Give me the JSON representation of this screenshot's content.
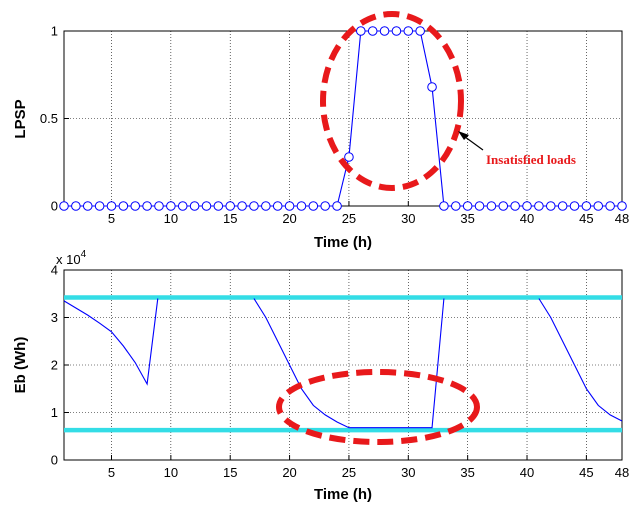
{
  "chart_data": [
    {
      "type": "line",
      "xlabel": "Time (h)",
      "ylabel": "LPSP",
      "xlim": [
        1,
        48
      ],
      "ylim": [
        0,
        1
      ],
      "xticks": [
        5,
        10,
        15,
        20,
        25,
        30,
        35,
        40,
        45,
        48
      ],
      "yticks": [
        0,
        0.5,
        1
      ],
      "ytick_labels": [
        "0",
        "0.5",
        "1"
      ],
      "grid": true,
      "series": [
        {
          "color": "#0000ff",
          "marker": "circle",
          "x": [
            1,
            2,
            3,
            4,
            5,
            6,
            7,
            8,
            9,
            10,
            11,
            12,
            13,
            14,
            15,
            16,
            17,
            18,
            19,
            20,
            21,
            22,
            23,
            24,
            25,
            26,
            27,
            28,
            29,
            30,
            31,
            32,
            33,
            34,
            35,
            36,
            37,
            38,
            39,
            40,
            41,
            42,
            43,
            44,
            45,
            46,
            47,
            48
          ],
          "y": [
            0,
            0,
            0,
            0,
            0,
            0,
            0,
            0,
            0,
            0,
            0,
            0,
            0,
            0,
            0,
            0,
            0,
            0,
            0,
            0,
            0,
            0,
            0,
            0,
            0.28,
            1,
            1,
            1,
            1,
            1,
            1,
            0.68,
            0,
            0,
            0,
            0,
            0,
            0,
            0,
            0,
            0,
            0,
            0,
            0,
            0,
            0,
            0,
            0
          ]
        }
      ],
      "annotations": [
        {
          "text": "Insatisfied loads",
          "color": "#e8191b"
        }
      ]
    },
    {
      "type": "line",
      "xlabel": "Time (h)",
      "ylabel": "Eb (Wh)",
      "xlim": [
        1,
        48
      ],
      "ylim": [
        0,
        4
      ],
      "y_multiplier": "x 10",
      "y_multiplier_exp": "4",
      "xticks": [
        5,
        10,
        15,
        20,
        25,
        30,
        35,
        40,
        45,
        48
      ],
      "yticks": [
        0,
        1,
        2,
        3,
        4
      ],
      "grid": true,
      "series": [
        {
          "color": "#0000ff",
          "x": [
            1,
            2,
            3,
            4,
            5,
            6,
            7,
            8,
            8.9
          ],
          "y": [
            3.35,
            3.2,
            3.05,
            2.88,
            2.7,
            2.4,
            2.05,
            1.6,
            3.4
          ]
        },
        {
          "color": "#0000ff",
          "x": [
            17,
            18,
            19,
            20,
            21,
            22,
            23,
            24,
            25,
            26,
            27,
            28,
            29,
            30,
            31,
            32,
            33
          ],
          "y": [
            3.4,
            3.0,
            2.5,
            2.0,
            1.5,
            1.15,
            0.95,
            0.8,
            0.68,
            0.68,
            0.68,
            0.68,
            0.68,
            0.68,
            0.68,
            0.68,
            3.4
          ]
        },
        {
          "color": "#0000ff",
          "x": [
            41,
            42,
            43,
            44,
            45,
            46,
            47,
            48
          ],
          "y": [
            3.4,
            3.0,
            2.5,
            2.0,
            1.5,
            1.15,
            0.95,
            0.82
          ]
        }
      ],
      "reference_lines": [
        {
          "y": 3.42,
          "color": "#33dde6"
        },
        {
          "y": 0.63,
          "color": "#33dde6"
        }
      ]
    }
  ]
}
